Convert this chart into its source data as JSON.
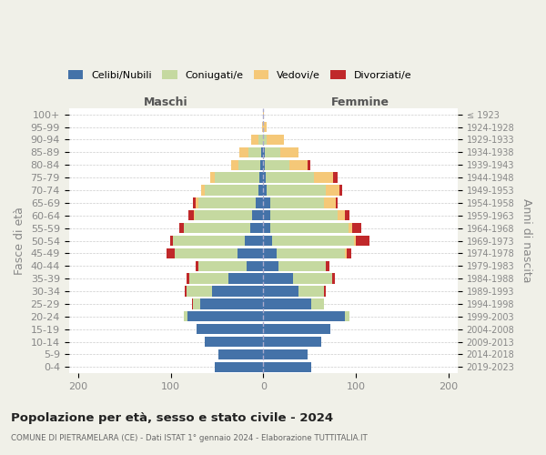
{
  "age_groups": [
    "100+",
    "95-99",
    "90-94",
    "85-89",
    "80-84",
    "75-79",
    "70-74",
    "65-69",
    "60-64",
    "55-59",
    "50-54",
    "45-49",
    "40-44",
    "35-39",
    "30-34",
    "25-29",
    "20-24",
    "15-19",
    "10-14",
    "5-9",
    "0-4"
  ],
  "birth_years": [
    "≤ 1923",
    "1924-1928",
    "1929-1933",
    "1934-1938",
    "1939-1943",
    "1944-1948",
    "1949-1953",
    "1954-1958",
    "1959-1963",
    "1964-1968",
    "1969-1973",
    "1974-1978",
    "1979-1983",
    "1984-1988",
    "1989-1993",
    "1994-1998",
    "1999-2003",
    "2004-2008",
    "2009-2013",
    "2014-2018",
    "2019-2023"
  ],
  "males": {
    "celibi": [
      0,
      0,
      0,
      2,
      3,
      4,
      5,
      8,
      12,
      14,
      20,
      28,
      18,
      38,
      55,
      68,
      82,
      72,
      63,
      48,
      52
    ],
    "coniugati": [
      0,
      0,
      5,
      14,
      24,
      48,
      58,
      62,
      62,
      72,
      78,
      68,
      52,
      42,
      28,
      8,
      4,
      0,
      0,
      0,
      0
    ],
    "vedovi": [
      0,
      1,
      8,
      10,
      8,
      5,
      4,
      3,
      1,
      0,
      0,
      0,
      0,
      0,
      0,
      0,
      0,
      0,
      0,
      0,
      0
    ],
    "divorziati": [
      0,
      0,
      0,
      0,
      0,
      0,
      0,
      3,
      6,
      5,
      3,
      8,
      3,
      3,
      2,
      1,
      0,
      0,
      0,
      0,
      0
    ]
  },
  "females": {
    "nubili": [
      0,
      0,
      0,
      2,
      2,
      3,
      4,
      8,
      8,
      8,
      10,
      14,
      16,
      32,
      38,
      52,
      88,
      72,
      63,
      48,
      52
    ],
    "coniugate": [
      0,
      0,
      4,
      16,
      26,
      52,
      64,
      58,
      72,
      84,
      88,
      74,
      52,
      42,
      28,
      14,
      5,
      0,
      0,
      0,
      0
    ],
    "vedove": [
      1,
      4,
      18,
      20,
      20,
      20,
      14,
      12,
      8,
      4,
      2,
      2,
      0,
      0,
      0,
      0,
      0,
      0,
      0,
      0,
      0
    ],
    "divorziate": [
      0,
      0,
      0,
      0,
      3,
      5,
      3,
      2,
      5,
      10,
      15,
      5,
      3,
      3,
      2,
      0,
      0,
      0,
      0,
      0,
      0
    ]
  },
  "colors": {
    "celibi": "#4472a8",
    "coniugati": "#c5d9a0",
    "vedovi": "#f5c878",
    "divorziati": "#c0282a"
  },
  "xlim": [
    -210,
    210
  ],
  "xticks": [
    -200,
    -100,
    0,
    100,
    200
  ],
  "xticklabels": [
    "200",
    "100",
    "0",
    "100",
    "200"
  ],
  "title": "Popolazione per età, sesso e stato civile - 2024",
  "subtitle": "COMUNE DI PIETRAMELARA (CE) - Dati ISTAT 1° gennaio 2024 - Elaborazione TUTTITALIA.IT",
  "ylabel_left": "Fasce di età",
  "ylabel_right": "Anni di nascita",
  "label_maschi": "Maschi",
  "label_femmine": "Femmine",
  "legend_labels": [
    "Celibi/Nubili",
    "Coniugati/e",
    "Vedovi/e",
    "Divorziati/e"
  ],
  "bg_color": "#f0f0e8",
  "plot_bg": "#ffffff"
}
